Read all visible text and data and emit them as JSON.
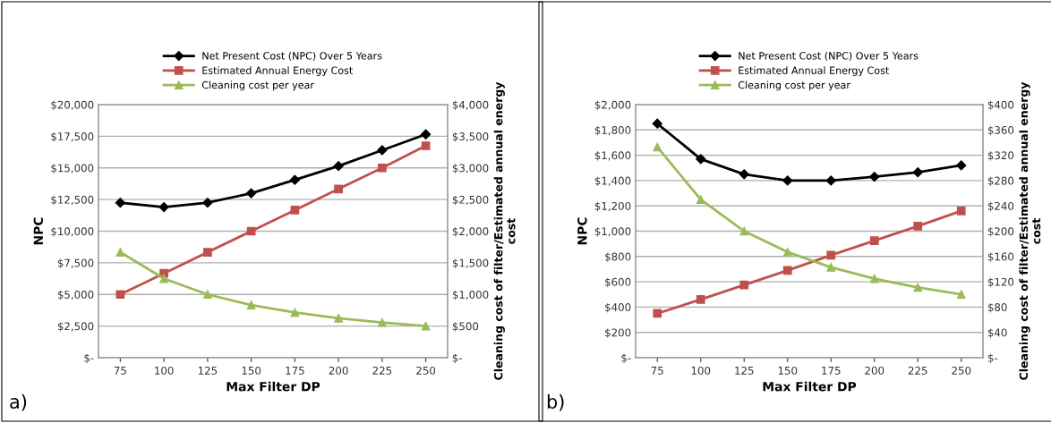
{
  "chart_data": [
    {
      "type": "line",
      "categories": [
        "75",
        "100",
        "125",
        "150",
        "175",
        "200",
        "225",
        "250"
      ],
      "xlabel": "Max Filter DP",
      "ylabel": "NPC",
      "y2label": "Cleaning cost of filter/Estimated annual energy\ncost",
      "legend": "top",
      "grid": "y",
      "annotations": [
        "a)"
      ],
      "ylim": [
        0,
        20000
      ],
      "yticks": [
        {
          "value": 0,
          "label": "$-"
        },
        {
          "value": 2500,
          "label": "$2,500"
        },
        {
          "value": 5000,
          "label": "$5,000"
        },
        {
          "value": 7500,
          "label": "$7,500"
        },
        {
          "value": 10000,
          "label": "$10,000"
        },
        {
          "value": 12500,
          "label": "$12,500"
        },
        {
          "value": 15000,
          "label": "$15,000"
        },
        {
          "value": 17500,
          "label": "$17,500"
        },
        {
          "value": 20000,
          "label": "$20,000"
        }
      ],
      "y2lim": [
        0,
        4000
      ],
      "y2ticks": [
        {
          "value": 0,
          "label": "$-"
        },
        {
          "value": 500,
          "label": "$500"
        },
        {
          "value": 1000,
          "label": "$1,000"
        },
        {
          "value": 1500,
          "label": "$1,500"
        },
        {
          "value": 2000,
          "label": "$2,000"
        },
        {
          "value": 2500,
          "label": "$2,500"
        },
        {
          "value": 3000,
          "label": "$3,000"
        },
        {
          "value": 3500,
          "label": "$3,500"
        },
        {
          "value": 4000,
          "label": "$4,000"
        }
      ],
      "series": [
        {
          "name": "Net Present Cost (NPC) Over 5 Years",
          "color": "#000000",
          "marker": "diamond",
          "values": [
            12250,
            11900,
            12250,
            13000,
            14050,
            15150,
            16400,
            17650
          ]
        },
        {
          "name": "Estimated Annual Energy Cost",
          "color": "#c0504d",
          "marker": "square",
          "axis": "y2",
          "values": [
            1000,
            1333,
            1667,
            2000,
            2333,
            2667,
            3000,
            3350
          ]
        },
        {
          "name": "Cleaning cost per year",
          "color": "#9bbb59",
          "marker": "triangle",
          "axis": "y2",
          "values": [
            1667,
            1250,
            1000,
            833,
            714,
            625,
            556,
            500
          ]
        }
      ]
    },
    {
      "type": "line",
      "categories": [
        "75",
        "100",
        "125",
        "150",
        "175",
        "200",
        "225",
        "250"
      ],
      "xlabel": "Max Filter DP",
      "ylabel": "NPC",
      "y2label": "Cleaning cost of filter/Estimated annual energy\ncost",
      "legend": "top",
      "grid": "y",
      "annotations": [
        "b)"
      ],
      "ylim": [
        0,
        2000
      ],
      "yticks": [
        {
          "value": 0,
          "label": "$-"
        },
        {
          "value": 200,
          "label": "$200"
        },
        {
          "value": 400,
          "label": "$400"
        },
        {
          "value": 600,
          "label": "$600"
        },
        {
          "value": 800,
          "label": "$800"
        },
        {
          "value": 1000,
          "label": "$1,000"
        },
        {
          "value": 1200,
          "label": "$1,200"
        },
        {
          "value": 1400,
          "label": "$1,400"
        },
        {
          "value": 1600,
          "label": "$1,600"
        },
        {
          "value": 1800,
          "label": "$1,800"
        },
        {
          "value": 2000,
          "label": "$2,000"
        }
      ],
      "y2lim": [
        0,
        400
      ],
      "y2ticks": [
        {
          "value": 0,
          "label": "$-"
        },
        {
          "value": 40,
          "label": "$40"
        },
        {
          "value": 80,
          "label": "$80"
        },
        {
          "value": 120,
          "label": "$120"
        },
        {
          "value": 160,
          "label": "$160"
        },
        {
          "value": 200,
          "label": "$200"
        },
        {
          "value": 240,
          "label": "$240"
        },
        {
          "value": 280,
          "label": "$280"
        },
        {
          "value": 320,
          "label": "$320"
        },
        {
          "value": 360,
          "label": "$360"
        },
        {
          "value": 400,
          "label": "$400"
        }
      ],
      "series": [
        {
          "name": "Net Present Cost (NPC) Over 5 Years",
          "color": "#000000",
          "marker": "diamond",
          "values": [
            1850,
            1570,
            1450,
            1400,
            1400,
            1430,
            1465,
            1520
          ]
        },
        {
          "name": "Estimated Annual Energy Cost",
          "color": "#c0504d",
          "marker": "square",
          "axis": "y2",
          "values": [
            70,
            92,
            115,
            138,
            162,
            185,
            208,
            232
          ]
        },
        {
          "name": "Cleaning cost per year",
          "color": "#9bbb59",
          "marker": "triangle",
          "axis": "y2",
          "values": [
            333,
            250,
            200,
            167,
            143,
            125,
            111,
            100
          ]
        }
      ]
    }
  ]
}
